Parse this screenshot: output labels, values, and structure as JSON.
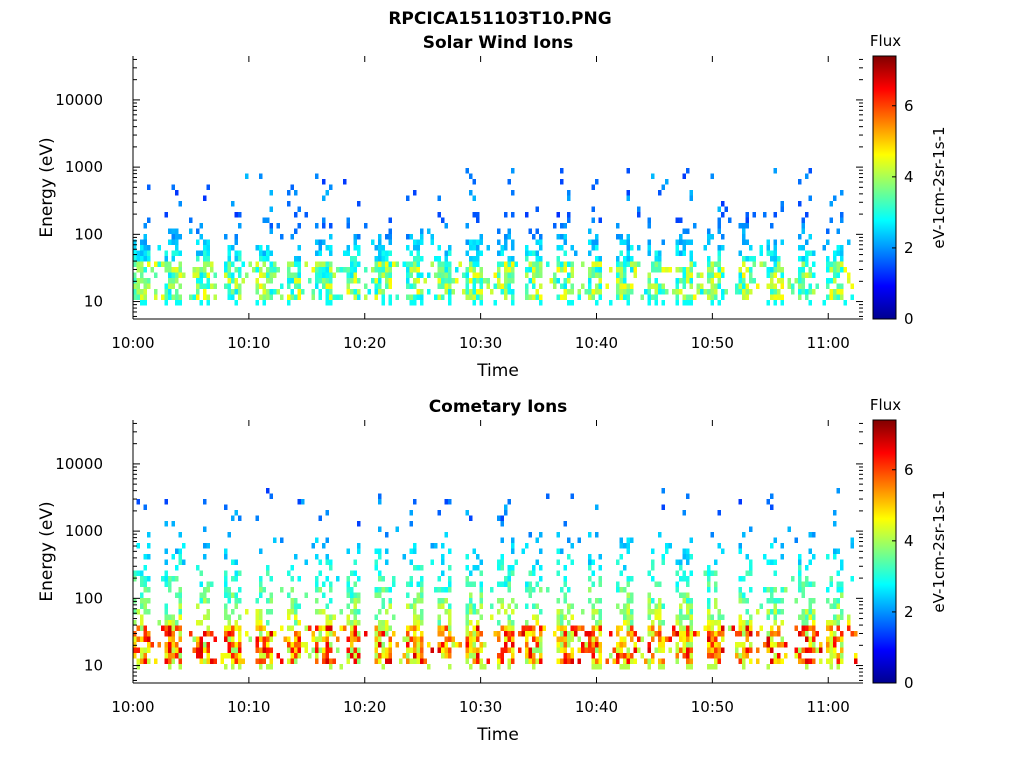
{
  "figure_title": "RPCICA151103T10.PNG",
  "colors": {
    "axis": "#000000",
    "background": "#ffffff"
  },
  "chart_data": [
    {
      "type": "heatmap",
      "title": "Solar Wind Ions",
      "xlabel": "Time",
      "ylabel": "Energy (eV)",
      "x_range_minutes": [
        600,
        663
      ],
      "x_ticks": [
        "10:00",
        "10:10",
        "10:20",
        "10:30",
        "10:40",
        "10:50",
        "11:00"
      ],
      "x_tick_minutes": [
        600,
        610,
        620,
        630,
        640,
        650,
        660
      ],
      "y_scale": "log",
      "y_range_ev": [
        5.5,
        45000
      ],
      "y_ticks": [
        "10",
        "100",
        "1000",
        "10000"
      ],
      "y_tick_values": [
        10,
        100,
        1000,
        10000
      ],
      "colormap": "jet",
      "colorbar": {
        "title": "Flux",
        "label": "eV-1cm-2sr-1s-1",
        "range": [
          0,
          7.4
        ],
        "ticks": [
          "0",
          "2",
          "4",
          "6"
        ],
        "tick_values": [
          0,
          2,
          4,
          6
        ]
      },
      "pulse_period_minutes": 2.6,
      "z_peak": 4.7,
      "high_energy_extent_ev": 250
    },
    {
      "type": "heatmap",
      "title": "Cometary Ions",
      "xlabel": "Time",
      "ylabel": "Energy (eV)",
      "x_range_minutes": [
        600,
        663
      ],
      "x_ticks": [
        "10:00",
        "10:10",
        "10:20",
        "10:30",
        "10:40",
        "10:50",
        "11:00"
      ],
      "x_tick_minutes": [
        600,
        610,
        620,
        630,
        640,
        650,
        660
      ],
      "y_scale": "log",
      "y_range_ev": [
        5.5,
        45000
      ],
      "y_ticks": [
        "10",
        "100",
        "1000",
        "10000"
      ],
      "y_tick_values": [
        10,
        100,
        1000,
        10000
      ],
      "colormap": "jet",
      "colorbar": {
        "title": "Flux",
        "label": "eV-1cm-2sr-1s-1",
        "range": [
          0,
          7.4
        ],
        "ticks": [
          "0",
          "2",
          "4",
          "6"
        ],
        "tick_values": [
          0,
          2,
          4,
          6
        ]
      },
      "pulse_period_minutes": 2.6,
      "z_peak": 6.8,
      "high_energy_extent_ev": 1200
    }
  ]
}
